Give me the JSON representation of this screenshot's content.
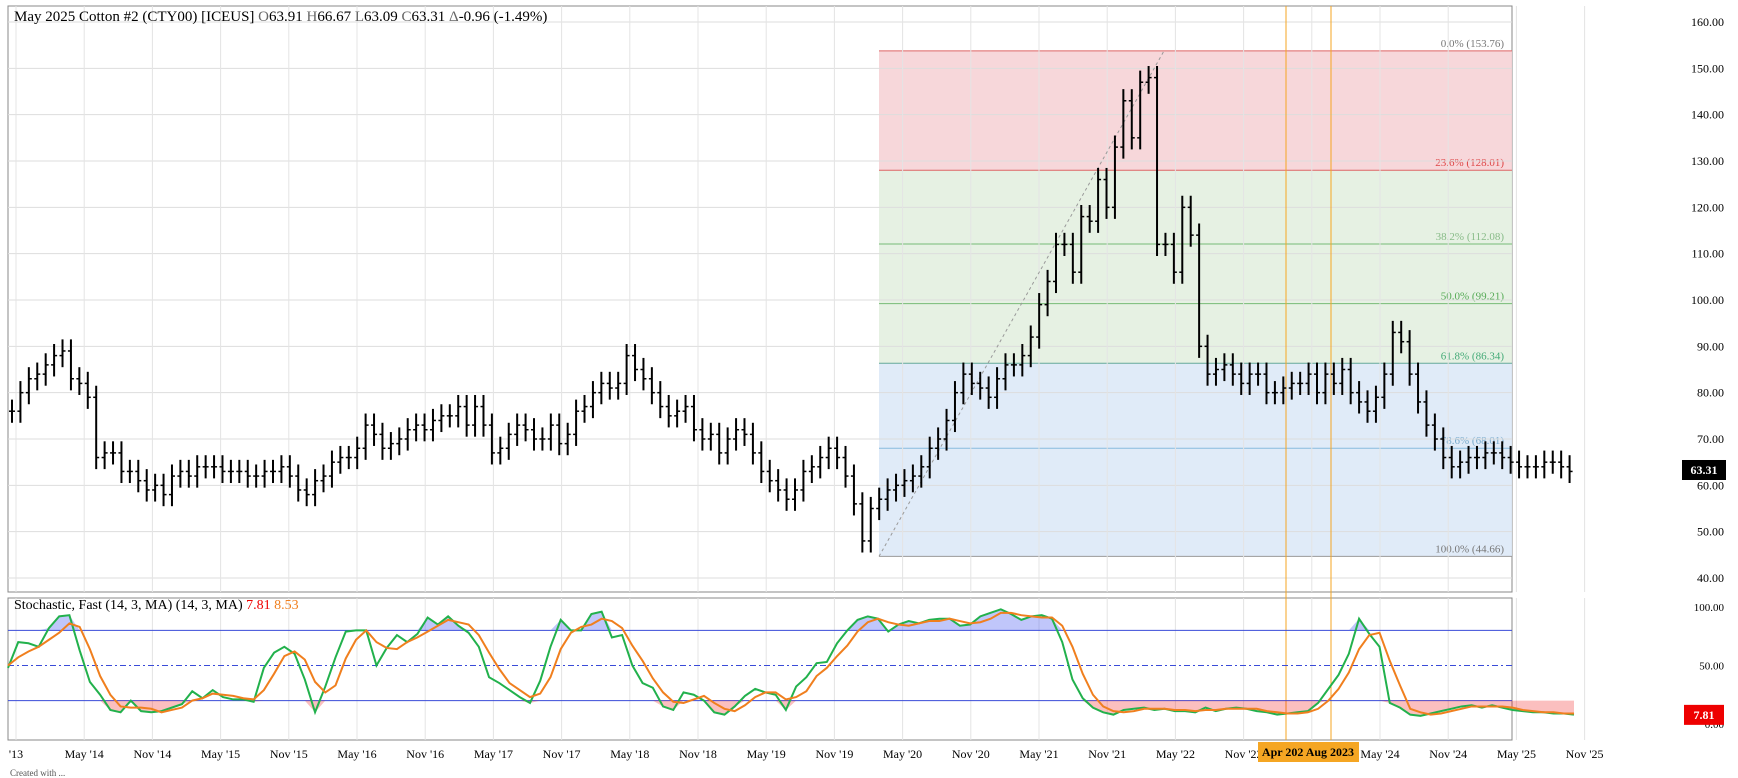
{
  "header": {
    "symbol": "May 2025 Cotton #2 (CTY00) [ICEUS]",
    "o_label": "O",
    "o": "63.91",
    "h_label": "H",
    "h": "66.67",
    "l_label": "L",
    "l": "63.09",
    "c_label": "C",
    "c": "63.31",
    "delta_label": "Δ",
    "delta": "-0.96 (-1.49%)"
  },
  "stoch_header": {
    "title": "Stochastic, Fast (14, 3, MA)  (14, 3, MA)",
    "k_value": "7.81",
    "d_value": "8.53"
  },
  "last_price_badge": "63.31",
  "stoch_badge": "7.81",
  "date_range_badge": "Apr 202 Aug 2023",
  "footer_text": "Created with ...",
  "colors": {
    "bars": "#000000",
    "stoch_k": "#22b14c",
    "stoch_d": "#f07f1e",
    "overbought_fill": "#4b5cf0",
    "oversold_fill": "#f00000",
    "vline": "#f5a623",
    "fib_red": "#f6d3d6",
    "fib_green": "#e3efe0",
    "fib_blue": "#dde9f7",
    "fib_grey": "#e2e2e2"
  },
  "chart_data": {
    "type": "ohlc",
    "period": "monthly",
    "y_axis": {
      "min": 40,
      "max": 160,
      "ticks": [
        "160.00",
        "150.00",
        "140.00",
        "130.00",
        "120.00",
        "110.00",
        "100.00",
        "90.00",
        "80.00",
        "70.00",
        "60.00",
        "50.00",
        "40.00"
      ]
    },
    "x_axis": {
      "ticks": [
        "'13",
        "May '14",
        "Nov '14",
        "May '15",
        "Nov '15",
        "May '16",
        "Nov '16",
        "May '17",
        "Nov '17",
        "May '18",
        "Nov '18",
        "May '19",
        "Nov '19",
        "May '20",
        "Nov '20",
        "May '21",
        "Nov '21",
        "May '22",
        "Nov '22",
        "'23",
        "May '24",
        "Nov '24",
        "May '25",
        "Nov '25"
      ]
    },
    "fibonacci": [
      {
        "label": "0.0% (153.76)",
        "value": 153.76
      },
      {
        "label": "23.6% (128.01)",
        "value": 128.01
      },
      {
        "label": "38.2% (112.08)",
        "value": 112.08
      },
      {
        "label": "50.0% (99.21)",
        "value": 99.21
      },
      {
        "label": "61.8% (86.34)",
        "value": 86.34
      },
      {
        "label": "78.6% (68.01)",
        "value": 68.01
      },
      {
        "label": "100.0% (44.66)",
        "value": 44.66
      }
    ],
    "ohlc_closes": [
      76,
      80,
      83,
      84,
      86,
      88,
      89,
      83,
      82,
      79,
      66,
      67,
      67,
      63,
      63,
      61,
      59,
      60,
      58,
      62,
      63,
      62,
      64,
      64,
      64,
      63,
      63,
      63,
      62,
      62,
      63,
      63,
      64,
      62,
      59,
      58,
      61,
      62,
      65,
      66,
      66,
      68,
      73,
      71,
      68,
      69,
      70,
      72,
      73,
      72,
      74,
      75,
      75,
      77,
      73,
      77,
      73,
      67,
      68,
      71,
      73,
      72,
      70,
      70,
      73,
      69,
      71,
      76,
      77,
      80,
      82,
      81,
      82,
      88,
      85,
      83,
      80,
      77,
      75,
      76,
      77,
      72,
      70,
      71,
      67,
      70,
      72,
      71,
      67,
      63,
      61,
      59,
      57,
      59,
      63,
      64,
      66,
      68,
      66,
      62,
      56,
      48,
      55,
      57,
      59,
      60,
      61,
      62,
      64,
      68,
      70,
      74,
      80,
      84,
      82,
      81,
      79,
      83,
      86,
      86,
      88,
      92,
      99,
      104,
      112,
      112,
      106,
      118,
      117,
      126,
      120,
      133,
      143,
      135,
      147,
      148,
      112,
      112,
      106,
      120,
      114,
      90,
      84,
      85,
      86,
      84,
      82,
      84,
      84,
      80,
      80,
      81,
      82,
      82,
      84,
      80,
      84,
      82,
      85,
      80,
      78,
      76,
      79,
      84,
      93,
      91,
      84,
      78,
      73,
      70,
      66,
      64,
      65,
      66,
      66,
      67,
      67,
      66,
      65,
      64,
      64,
      64,
      65,
      65,
      64,
      63
    ],
    "stochastic": {
      "k_name": "%K",
      "d_name": "%D",
      "overbought": 80,
      "oversold": 20,
      "k": [
        48,
        70,
        69,
        66,
        82,
        92,
        93,
        63,
        36,
        25,
        12,
        10,
        20,
        11,
        10,
        11,
        14,
        17,
        28,
        22,
        29,
        23,
        21,
        21,
        19,
        48,
        61,
        66,
        60,
        38,
        10,
        32,
        57,
        79,
        80,
        80,
        50,
        65,
        76,
        70,
        77,
        91,
        85,
        92,
        84,
        78,
        66,
        40,
        35,
        29,
        23,
        18,
        37,
        66,
        89,
        80,
        80,
        94,
        96,
        74,
        76,
        50,
        35,
        31,
        15,
        12,
        27,
        25,
        20,
        10,
        8,
        15,
        24,
        30,
        27,
        25,
        12,
        32,
        40,
        52,
        53,
        69,
        80,
        89,
        92,
        90,
        79,
        85,
        88,
        86,
        89,
        90,
        90,
        84,
        85,
        92,
        95,
        98,
        94,
        89,
        92,
        93,
        90,
        70,
        38,
        22,
        14,
        10,
        8,
        12,
        13,
        14,
        12,
        13,
        11,
        11,
        10,
        14,
        11,
        13,
        14,
        13,
        11,
        10,
        8,
        9,
        10,
        11,
        18,
        30,
        42,
        60,
        90,
        77,
        66,
        18,
        14,
        8,
        7,
        9,
        11,
        13,
        15,
        16,
        14,
        16,
        14,
        12,
        11,
        10,
        10,
        9,
        9,
        8
      ],
      "d": [
        50,
        57,
        62,
        66,
        72,
        78,
        86,
        83,
        64,
        41,
        25,
        15,
        14,
        14,
        13,
        10,
        12,
        14,
        20,
        22,
        26,
        25,
        24,
        22,
        21,
        29,
        43,
        58,
        62,
        55,
        36,
        27,
        33,
        56,
        72,
        80,
        70,
        65,
        64,
        70,
        74,
        79,
        84,
        89,
        87,
        85,
        76,
        61,
        47,
        35,
        29,
        23,
        26,
        40,
        64,
        78,
        83,
        85,
        90,
        88,
        82,
        67,
        54,
        39,
        27,
        19,
        18,
        21,
        24,
        18,
        13,
        11,
        16,
        23,
        27,
        27,
        21,
        23,
        28,
        41,
        48,
        58,
        67,
        79,
        87,
        90,
        87,
        85,
        84,
        86,
        88,
        88,
        90,
        88,
        86,
        87,
        90,
        95,
        95,
        93,
        92,
        91,
        91,
        84,
        66,
        43,
        25,
        15,
        11,
        10,
        11,
        13,
        13,
        13,
        12,
        12,
        11,
        12,
        12,
        13,
        13,
        13,
        13,
        11,
        10,
        9,
        9,
        10,
        13,
        20,
        30,
        44,
        64,
        76,
        78,
        54,
        33,
        13,
        10,
        8,
        9,
        11,
        13,
        15,
        15,
        15,
        15,
        14,
        12,
        11,
        10,
        10,
        9,
        9
      ]
    }
  }
}
